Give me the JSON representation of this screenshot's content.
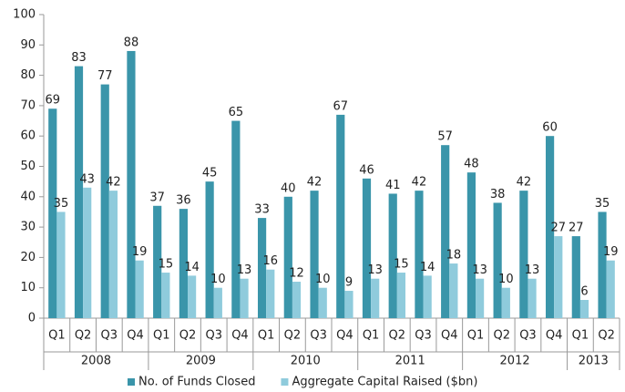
{
  "chart_data": {
    "type": "bar",
    "groups": [
      {
        "label": "2008",
        "categories": [
          "Q1",
          "Q2",
          "Q3",
          "Q4"
        ]
      },
      {
        "label": "2009",
        "categories": [
          "Q1",
          "Q2",
          "Q3",
          "Q4"
        ]
      },
      {
        "label": "2010",
        "categories": [
          "Q1",
          "Q2",
          "Q3",
          "Q4"
        ]
      },
      {
        "label": "2011",
        "categories": [
          "Q1",
          "Q2",
          "Q3",
          "Q4"
        ]
      },
      {
        "label": "2012",
        "categories": [
          "Q1",
          "Q2",
          "Q3",
          "Q4"
        ]
      },
      {
        "label": "2013",
        "categories": [
          "Q1",
          "Q2"
        ]
      }
    ],
    "series": [
      {
        "name": "No. of Funds Closed",
        "color": "#3a95aa",
        "values": [
          69,
          83,
          77,
          88,
          37,
          36,
          45,
          65,
          33,
          40,
          42,
          67,
          46,
          41,
          42,
          57,
          48,
          38,
          42,
          60,
          27,
          35
        ]
      },
      {
        "name": "Aggregate Capital Raised ($bn)",
        "color": "#8fcbdc",
        "values": [
          35,
          43,
          42,
          19,
          15,
          14,
          10,
          13,
          16,
          12,
          10,
          9,
          13,
          15,
          14,
          18,
          13,
          10,
          13,
          27,
          6,
          19
        ]
      }
    ],
    "ylim": [
      0,
      100
    ],
    "yticks": [
      0,
      10,
      20,
      30,
      40,
      50,
      60,
      70,
      80,
      90,
      100
    ],
    "grid": false,
    "legend": "bottom"
  }
}
